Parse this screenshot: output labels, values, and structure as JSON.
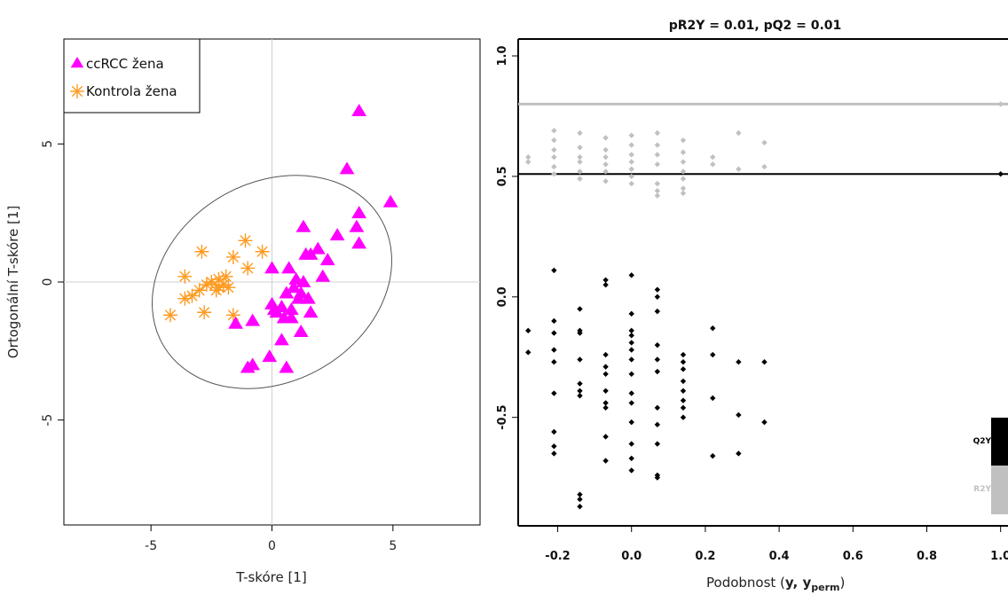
{
  "colors": {
    "ccrcc": "#ff00ff",
    "control": "#ff9a1f",
    "q2": "#000000",
    "r2": "#c0c0c0",
    "ellipse": "#555555",
    "grid": "#d0d0d0"
  },
  "chart_data": [
    {
      "type": "scatter",
      "title": "",
      "xlabel": "T-skóre [1]",
      "ylabel": "Ortogonální T-skóre [1]",
      "xlim": [
        -8.6,
        8.6
      ],
      "ylim": [
        -8.8,
        8.8
      ],
      "xticks": [
        -5,
        0,
        5
      ],
      "yticks": [
        -5,
        0,
        5
      ],
      "legend_position": "top-left",
      "ellipse": {
        "cx": 0,
        "cy": 0,
        "rx": 5.2,
        "ry": 3.6,
        "angle_deg": 30
      },
      "series": [
        {
          "name": "ccRCC žena",
          "marker": "triangle",
          "color": "#ff00ff",
          "points": [
            [
              3.6,
              6.2
            ],
            [
              3.1,
              4.1
            ],
            [
              4.9,
              2.9
            ],
            [
              3.6,
              2.5
            ],
            [
              3.5,
              2.0
            ],
            [
              1.3,
              2.0
            ],
            [
              2.7,
              1.7
            ],
            [
              3.6,
              1.4
            ],
            [
              1.9,
              1.2
            ],
            [
              1.6,
              1.0
            ],
            [
              1.4,
              1.0
            ],
            [
              2.3,
              0.8
            ],
            [
              0.0,
              0.5
            ],
            [
              0.7,
              0.5
            ],
            [
              2.1,
              0.2
            ],
            [
              1.0,
              0.1
            ],
            [
              1.3,
              0.0
            ],
            [
              0.9,
              -0.2
            ],
            [
              1.2,
              -0.4
            ],
            [
              0.6,
              -0.4
            ],
            [
              1.1,
              -0.6
            ],
            [
              0.0,
              -0.8
            ],
            [
              1.5,
              -0.6
            ],
            [
              0.4,
              -0.9
            ],
            [
              0.1,
              -1.0
            ],
            [
              0.2,
              -1.1
            ],
            [
              0.8,
              -1.0
            ],
            [
              1.6,
              -1.1
            ],
            [
              0.5,
              -1.3
            ],
            [
              0.8,
              -1.3
            ],
            [
              -1.5,
              -1.5
            ],
            [
              -0.8,
              -1.4
            ],
            [
              1.2,
              -1.8
            ],
            [
              0.4,
              -2.1
            ],
            [
              -0.1,
              -2.7
            ],
            [
              -0.8,
              -3.0
            ],
            [
              -1.0,
              -3.1
            ],
            [
              0.6,
              -3.1
            ]
          ]
        },
        {
          "name": "Kontrola žena",
          "marker": "asterisk",
          "color": "#ff9a1f",
          "points": [
            [
              -1.1,
              1.5
            ],
            [
              -0.4,
              1.1
            ],
            [
              -2.9,
              1.1
            ],
            [
              -1.6,
              0.9
            ],
            [
              -1.0,
              0.5
            ],
            [
              -3.6,
              0.2
            ],
            [
              -1.9,
              0.2
            ],
            [
              -2.2,
              0.1
            ],
            [
              -2.5,
              0.0
            ],
            [
              -2.0,
              -0.1
            ],
            [
              -2.7,
              -0.1
            ],
            [
              -2.2,
              -0.2
            ],
            [
              -1.8,
              -0.2
            ],
            [
              -2.3,
              -0.3
            ],
            [
              -3.0,
              -0.3
            ],
            [
              -3.3,
              -0.5
            ],
            [
              -3.6,
              -0.6
            ],
            [
              -4.2,
              -1.2
            ],
            [
              -2.8,
              -1.1
            ],
            [
              -1.6,
              -1.2
            ]
          ]
        }
      ]
    },
    {
      "type": "scatter",
      "title": "pR2Y = 0.01, pQ2 = 0.01",
      "xlabel": "Podobnost (y, yperm)",
      "xlabel_main": "Podobnost (",
      "xlabel_bold": "y, y",
      "xlabel_sub": "perm",
      "xlabel_end": ")",
      "ylabel": "",
      "xlim": [
        -0.295,
        1.02
      ],
      "ylim": [
        -0.95,
        1.07
      ],
      "xticks": [
        "-0.2",
        "0.0",
        "0.2",
        "0.4",
        "0.6",
        "0.8",
        "1.0"
      ],
      "yticks": [
        "-0.5",
        "0.0",
        "0.5",
        "1.0"
      ],
      "reference_lines": {
        "R2Y": 0.8,
        "Q2Y": 0.51
      },
      "legend": [
        "Q2Y",
        "R2Y"
      ],
      "legend_position": "bottom-right",
      "series": [
        {
          "name": "R2Y",
          "color": "#c0c0c0",
          "points": [
            [
              -0.28,
              0.56
            ],
            [
              -0.28,
              0.58
            ],
            [
              -0.21,
              0.69
            ],
            [
              -0.21,
              0.65
            ],
            [
              -0.21,
              0.61
            ],
            [
              -0.21,
              0.58
            ],
            [
              -0.21,
              0.54
            ],
            [
              -0.21,
              0.51
            ],
            [
              -0.14,
              0.68
            ],
            [
              -0.14,
              0.62
            ],
            [
              -0.14,
              0.58
            ],
            [
              -0.14,
              0.56
            ],
            [
              -0.14,
              0.52
            ],
            [
              -0.14,
              0.49
            ],
            [
              -0.07,
              0.66
            ],
            [
              -0.07,
              0.61
            ],
            [
              -0.07,
              0.58
            ],
            [
              -0.07,
              0.55
            ],
            [
              -0.07,
              0.52
            ],
            [
              -0.07,
              0.48
            ],
            [
              0.0,
              0.67
            ],
            [
              0.0,
              0.63
            ],
            [
              0.0,
              0.59
            ],
            [
              0.0,
              0.56
            ],
            [
              0.0,
              0.53
            ],
            [
              0.0,
              0.5
            ],
            [
              0.0,
              0.47
            ],
            [
              0.07,
              0.68
            ],
            [
              0.07,
              0.63
            ],
            [
              0.07,
              0.59
            ],
            [
              0.07,
              0.55
            ],
            [
              0.07,
              0.47
            ],
            [
              0.07,
              0.44
            ],
            [
              0.07,
              0.42
            ],
            [
              0.14,
              0.65
            ],
            [
              0.14,
              0.6
            ],
            [
              0.14,
              0.56
            ],
            [
              0.14,
              0.52
            ],
            [
              0.14,
              0.49
            ],
            [
              0.14,
              0.45
            ],
            [
              0.14,
              0.43
            ],
            [
              0.22,
              0.58
            ],
            [
              0.22,
              0.55
            ],
            [
              0.29,
              0.68
            ],
            [
              0.29,
              0.53
            ],
            [
              0.36,
              0.64
            ],
            [
              0.36,
              0.54
            ],
            [
              1.0,
              0.8
            ]
          ]
        },
        {
          "name": "Q2Y",
          "color": "#000000",
          "points": [
            [
              -0.28,
              -0.14
            ],
            [
              -0.28,
              -0.23
            ],
            [
              -0.21,
              0.11
            ],
            [
              -0.21,
              -0.1
            ],
            [
              -0.21,
              -0.15
            ],
            [
              -0.21,
              -0.22
            ],
            [
              -0.21,
              -0.27
            ],
            [
              -0.21,
              -0.4
            ],
            [
              -0.21,
              -0.56
            ],
            [
              -0.21,
              -0.62
            ],
            [
              -0.21,
              -0.65
            ],
            [
              -0.14,
              -0.05
            ],
            [
              -0.14,
              -0.14
            ],
            [
              -0.14,
              -0.15
            ],
            [
              -0.14,
              -0.26
            ],
            [
              -0.14,
              -0.36
            ],
            [
              -0.14,
              -0.39
            ],
            [
              -0.14,
              -0.41
            ],
            [
              -0.14,
              -0.82
            ],
            [
              -0.14,
              -0.84
            ],
            [
              -0.14,
              -0.87
            ],
            [
              -0.07,
              0.07
            ],
            [
              -0.07,
              0.05
            ],
            [
              -0.07,
              -0.24
            ],
            [
              -0.07,
              -0.29
            ],
            [
              -0.07,
              -0.32
            ],
            [
              -0.07,
              -0.39
            ],
            [
              -0.07,
              -0.44
            ],
            [
              -0.07,
              -0.46
            ],
            [
              -0.07,
              -0.58
            ],
            [
              -0.07,
              -0.68
            ],
            [
              0.0,
              0.09
            ],
            [
              0.0,
              -0.07
            ],
            [
              0.0,
              -0.14
            ],
            [
              0.0,
              -0.16
            ],
            [
              0.0,
              -0.19
            ],
            [
              0.0,
              -0.22
            ],
            [
              0.0,
              -0.26
            ],
            [
              0.0,
              -0.32
            ],
            [
              0.0,
              -0.4
            ],
            [
              0.0,
              -0.44
            ],
            [
              0.0,
              -0.52
            ],
            [
              0.0,
              -0.61
            ],
            [
              0.0,
              -0.67
            ],
            [
              0.0,
              -0.72
            ],
            [
              0.07,
              0.03
            ],
            [
              0.07,
              0.0
            ],
            [
              0.07,
              -0.06
            ],
            [
              0.07,
              -0.2
            ],
            [
              0.07,
              -0.26
            ],
            [
              0.07,
              -0.31
            ],
            [
              0.07,
              -0.46
            ],
            [
              0.07,
              -0.53
            ],
            [
              0.07,
              -0.61
            ],
            [
              0.07,
              -0.74
            ],
            [
              0.07,
              -0.75
            ],
            [
              0.14,
              -0.24
            ],
            [
              0.14,
              -0.27
            ],
            [
              0.14,
              -0.3
            ],
            [
              0.14,
              -0.35
            ],
            [
              0.14,
              -0.39
            ],
            [
              0.14,
              -0.43
            ],
            [
              0.14,
              -0.46
            ],
            [
              0.14,
              -0.5
            ],
            [
              0.22,
              -0.13
            ],
            [
              0.22,
              -0.24
            ],
            [
              0.22,
              -0.42
            ],
            [
              0.22,
              -0.66
            ],
            [
              0.29,
              -0.27
            ],
            [
              0.29,
              -0.49
            ],
            [
              0.29,
              -0.65
            ],
            [
              0.36,
              -0.27
            ],
            [
              0.36,
              -0.52
            ],
            [
              1.0,
              0.51
            ]
          ]
        }
      ]
    }
  ]
}
